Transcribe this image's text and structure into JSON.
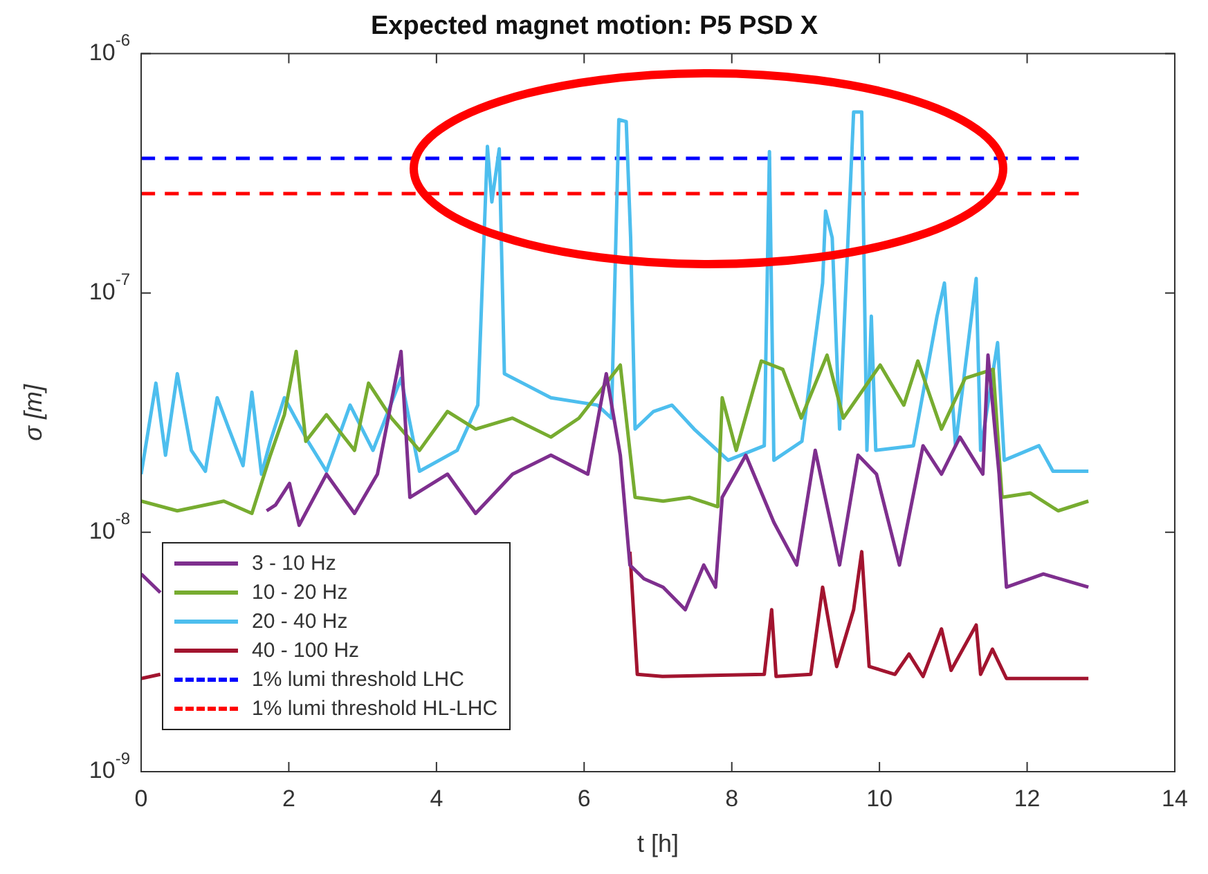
{
  "chart_data": {
    "type": "line",
    "title": "Expected magnet motion: P5 PSD X",
    "xlabel": "t [h]",
    "ylabel": "σ [m]",
    "xlim": [
      0,
      14
    ],
    "xticks": [
      0,
      2,
      4,
      6,
      8,
      10,
      12,
      14
    ],
    "ylim": [
      1e-09,
      1e-06
    ],
    "yticks": [
      {
        "value": 1e-09,
        "label": "10$^{-9}$"
      },
      {
        "value": 1e-08,
        "label": "10$^{-8}$"
      },
      {
        "value": 1e-07,
        "label": "10$^{-7}$"
      },
      {
        "value": 1e-06,
        "label": "10$^{-6}$"
      }
    ],
    "log": "y",
    "legend": "bottom left",
    "series": [
      {
        "name": "3 - 10 Hz",
        "color": "#7e2f8e",
        "x": [
          0,
          0.26,
          0.4,
          1.7,
          1.82,
          2.01,
          2.14,
          2.51,
          2.89,
          3.2,
          3.52,
          3.64,
          4.15,
          4.53,
          5.03,
          5.55,
          6.05,
          6.3,
          6.49,
          6.62,
          6.81,
          7.07,
          7.37,
          7.62,
          7.78,
          7.87,
          8.19,
          8.57,
          8.88,
          9.13,
          9.46,
          9.71,
          9.96,
          10.27,
          10.59,
          10.84,
          11.09,
          11.4,
          11.47,
          11.62,
          11.72,
          12.22,
          12.83
        ],
        "values": [
          6.7e-09,
          5.6e-09,
          null,
          1.23e-08,
          1.3e-08,
          1.6e-08,
          1.07e-08,
          1.75e-08,
          1.2e-08,
          1.75e-08,
          5.7e-08,
          1.4e-08,
          1.75e-08,
          1.2e-08,
          1.75e-08,
          2.1e-08,
          1.75e-08,
          4.6e-08,
          2.1e-08,
          7.3e-09,
          6.4e-09,
          5.9e-09,
          4.75e-09,
          7.3e-09,
          5.9e-09,
          1.4e-08,
          2.1e-08,
          1.1e-08,
          7.3e-09,
          2.2e-08,
          7.3e-09,
          2.1e-08,
          1.75e-08,
          7.3e-09,
          2.3e-08,
          1.75e-08,
          2.5e-08,
          1.75e-08,
          5.5e-08,
          1.75e-08,
          5.9e-09,
          6.7e-09,
          5.9e-09
        ]
      },
      {
        "name": "10 - 20 Hz",
        "color": "#77ac30",
        "x": [
          0,
          0.49,
          1.12,
          1.5,
          1.75,
          1.94,
          2.1,
          2.23,
          2.51,
          2.89,
          3.08,
          3.39,
          3.77,
          4.15,
          4.53,
          5.03,
          5.55,
          5.93,
          6.49,
          6.69,
          7.07,
          7.43,
          7.81,
          7.87,
          8.06,
          8.4,
          8.69,
          8.94,
          9.29,
          9.51,
          10.01,
          10.33,
          10.52,
          10.84,
          11.16,
          11.54,
          11.66,
          12.04,
          12.42,
          12.83
        ],
        "values": [
          1.35e-08,
          1.23e-08,
          1.35e-08,
          1.2e-08,
          2.1e-08,
          3.1e-08,
          5.7e-08,
          2.4e-08,
          3.1e-08,
          2.2e-08,
          4.2e-08,
          3e-08,
          2.2e-08,
          3.2e-08,
          2.7e-08,
          3e-08,
          2.5e-08,
          3e-08,
          5e-08,
          1.4e-08,
          1.35e-08,
          1.4e-08,
          1.28e-08,
          3.65e-08,
          2.2e-08,
          5.2e-08,
          4.8e-08,
          3e-08,
          5.5e-08,
          3e-08,
          5e-08,
          3.4e-08,
          5.2e-08,
          2.7e-08,
          4.4e-08,
          4.8e-08,
          1.4e-08,
          1.46e-08,
          1.23e-08,
          1.35e-08
        ]
      },
      {
        "name": "20 - 40 Hz",
        "color": "#4dbeee",
        "x": [
          0,
          0.2,
          0.33,
          0.49,
          0.68,
          0.87,
          1.03,
          1.19,
          1.38,
          1.5,
          1.63,
          1.75,
          1.94,
          2.26,
          2.51,
          2.83,
          3.14,
          3.52,
          3.77,
          4.28,
          4.56,
          4.69,
          4.75,
          4.85,
          4.92,
          5.55,
          6.18,
          6.37,
          6.47,
          6.57,
          6.63,
          6.69,
          6.94,
          7.19,
          7.49,
          7.95,
          8.44,
          8.51,
          8.57,
          8.95,
          9.23,
          9.27,
          9.36,
          9.46,
          9.65,
          9.76,
          9.83,
          9.89,
          9.95,
          10.46,
          10.78,
          10.88,
          11.03,
          11.31,
          11.37,
          11.6,
          11.69,
          12.16,
          12.35,
          12.83
        ],
        "values": [
          1.75e-08,
          4.2e-08,
          2.1e-08,
          4.6e-08,
          2.2e-08,
          1.8e-08,
          3.65e-08,
          2.7e-08,
          1.9e-08,
          3.85e-08,
          1.75e-08,
          2.4e-08,
          3.65e-08,
          2.4e-08,
          1.8e-08,
          3.4e-08,
          2.2e-08,
          4.4e-08,
          1.8e-08,
          2.2e-08,
          3.4e-08,
          4.1e-07,
          2.4e-07,
          4e-07,
          4.6e-08,
          3.65e-08,
          3.4e-08,
          3e-08,
          5.3e-07,
          5.2e-07,
          1.7e-07,
          2.7e-08,
          3.2e-08,
          3.4e-08,
          2.7e-08,
          2e-08,
          2.3e-08,
          3.9e-07,
          2e-08,
          2.4e-08,
          1.1e-07,
          2.2e-07,
          1.7e-07,
          2.7e-08,
          5.7e-07,
          5.7e-07,
          2.2e-08,
          8e-08,
          2.2e-08,
          2.3e-08,
          8e-08,
          1.1e-07,
          2.3e-08,
          1.15e-07,
          2.2e-08,
          6.2e-08,
          2e-08,
          2.3e-08,
          1.8e-08,
          1.8e-08
        ]
      },
      {
        "name": "40 - 100 Hz",
        "color": "#a2142f",
        "x": [
          0,
          0.26,
          0.4,
          6.5,
          6.62,
          6.72,
          7.06,
          8.44,
          8.54,
          8.6,
          9.07,
          9.23,
          9.32,
          9.42,
          9.65,
          9.76,
          9.86,
          10.21,
          10.4,
          10.59,
          10.84,
          10.97,
          11.31,
          11.37,
          11.53,
          11.72,
          12.83
        ],
        "values": [
          2.45e-09,
          2.55e-09,
          null,
          null,
          8.3e-09,
          2.55e-09,
          2.5e-09,
          2.55e-09,
          4.75e-09,
          2.5e-09,
          2.55e-09,
          5.9e-09,
          4.1e-09,
          2.75e-09,
          4.75e-09,
          8.3e-09,
          2.75e-09,
          2.55e-09,
          3.1e-09,
          2.5e-09,
          3.95e-09,
          2.65e-09,
          4.1e-09,
          2.55e-09,
          3.25e-09,
          2.45e-09,
          2.45e-09
        ]
      },
      {
        "name": "1% lumi threshold LHC",
        "color": "#0000ff",
        "line_style": "dashed",
        "x": [
          0,
          12.7
        ],
        "values": [
          3.65e-07,
          3.65e-07
        ]
      },
      {
        "name": "1% lumi threshold HL-LHC",
        "color": "#ff0000",
        "line_style": "dashed",
        "x": [
          0,
          12.7
        ],
        "values": [
          2.6e-07,
          2.6e-07
        ]
      }
    ]
  }
}
